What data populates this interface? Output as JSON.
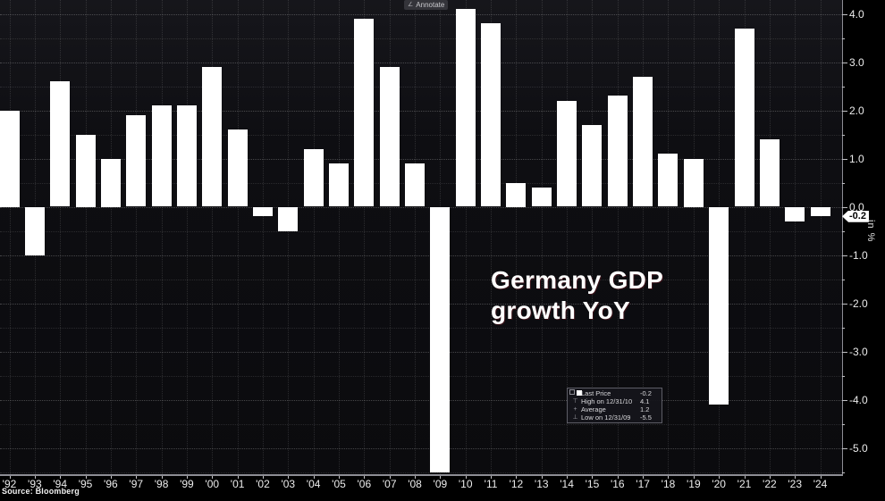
{
  "toolbar": {
    "annotate_label": "Annotate",
    "annotate_icon_glyph": "∠"
  },
  "title": {
    "line1": "Germany GDP",
    "line2": "growth YoY"
  },
  "unit_label": "in %",
  "source": "Source: Bloomberg",
  "last_price_badge": "-0.2",
  "legend": {
    "rows": [
      {
        "icon": "last-price-swatch",
        "glyph": "",
        "label": "Last Price",
        "value": "-0.2"
      },
      {
        "icon": "high-marker",
        "glyph": "⊤",
        "label": "High on 12/31/10",
        "value": "4.1"
      },
      {
        "icon": "average-marker",
        "glyph": "+",
        "label": "Average",
        "value": "1.2"
      },
      {
        "icon": "low-marker",
        "glyph": "⊥",
        "label": "Low on 12/31/09",
        "value": "-5.5"
      }
    ]
  },
  "chart_data": {
    "type": "bar",
    "title": "Germany GDP growth YoY",
    "ylabel": "in %",
    "categories": [
      "'92",
      "'93",
      "'94",
      "'95",
      "'96",
      "'97",
      "'98",
      "'99",
      "'00",
      "'01",
      "'02",
      "'03",
      "'04",
      "'05",
      "'06",
      "'07",
      "'08",
      "'09",
      "'10",
      "'11",
      "'12",
      "'13",
      "'14",
      "'15",
      "'16",
      "'17",
      "'18",
      "'19",
      "'20",
      "'21",
      "'22",
      "'23",
      "'24"
    ],
    "values": [
      2.0,
      -1.0,
      2.6,
      1.5,
      1.0,
      1.9,
      2.1,
      2.1,
      2.9,
      1.6,
      -0.2,
      -0.5,
      1.2,
      0.9,
      3.9,
      2.9,
      0.9,
      -5.5,
      4.1,
      3.8,
      0.5,
      0.4,
      2.2,
      1.7,
      2.3,
      2.7,
      1.1,
      1.0,
      -4.1,
      3.7,
      1.4,
      -0.3,
      -0.2
    ],
    "last_price": -0.2,
    "high": {
      "date": "12/31/10",
      "value": 4.1
    },
    "low": {
      "date": "12/31/09",
      "value": -5.5
    },
    "average": 1.2,
    "y_tick_labels": [
      "4.0",
      "3.0",
      "2.0",
      "1.0",
      "0.0",
      "-1.0",
      "-2.0",
      "-3.0",
      "-4.0",
      "-5.0"
    ],
    "ylim": [
      -5.56,
      4.3
    ],
    "grid": "dotted, every 0.5 horizontal, every year vertical",
    "legend_position": "lower-center",
    "bar_color": "#ffffff",
    "background_color": "#0d0d11"
  }
}
